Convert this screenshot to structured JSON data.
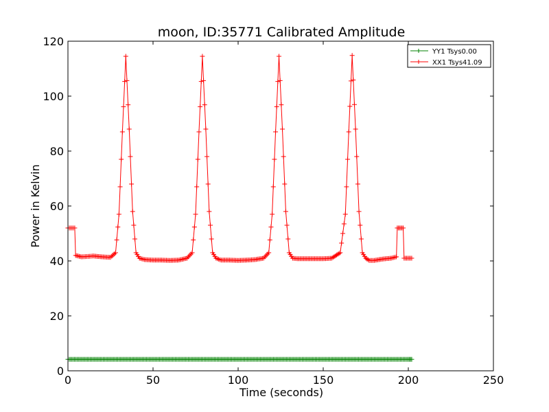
{
  "chart_data": {
    "type": "line",
    "title": "moon, ID:35771 Calibrated Amplitude",
    "xlabel": "Time (seconds)",
    "ylabel": "Power in Kelvin",
    "xlim": [
      0,
      250
    ],
    "ylim": [
      0,
      120
    ],
    "xticks": [
      0,
      50,
      100,
      150,
      200,
      250
    ],
    "yticks": [
      0,
      20,
      40,
      60,
      80,
      100,
      120
    ],
    "grid": false,
    "legend_position": "top-right",
    "marker": "+",
    "series": [
      {
        "name": "YY1 Tsys0.00",
        "color": "#008000",
        "x": [
          0,
          10,
          20,
          30,
          40,
          50,
          60,
          70,
          80,
          90,
          100,
          110,
          120,
          130,
          140,
          150,
          160,
          170,
          180,
          190,
          200,
          202
        ],
        "y": [
          4.2,
          4.2,
          4.2,
          4.2,
          4.2,
          4.2,
          4.2,
          4.2,
          4.2,
          4.2,
          4.2,
          4.2,
          4.2,
          4.2,
          4.2,
          4.2,
          4.2,
          4.2,
          4.2,
          4.2,
          4.2,
          4.2
        ]
      },
      {
        "name": "XX1 Tsys41.09",
        "color": "#ff0000",
        "x": [
          0,
          4,
          4.5,
          8,
          15,
          20,
          25,
          28,
          30,
          32,
          34,
          36,
          38,
          40,
          42,
          45,
          50,
          55,
          60,
          65,
          70,
          73,
          75,
          77,
          79,
          81,
          83,
          85,
          87,
          90,
          95,
          100,
          105,
          110,
          115,
          118,
          120,
          122,
          124,
          126,
          128,
          130,
          132,
          135,
          140,
          145,
          150,
          155,
          160,
          163,
          165,
          167,
          169,
          171,
          173,
          175,
          177,
          180,
          185,
          190,
          193,
          193.5,
          197,
          197.5,
          202
        ],
        "y": [
          52,
          52,
          42,
          41.5,
          41.8,
          41.5,
          41.3,
          43,
          57,
          87,
          114.5,
          88,
          58,
          43,
          41,
          40.5,
          40.3,
          40.3,
          40.2,
          40.3,
          41,
          43,
          57,
          87,
          114.5,
          88,
          58,
          43,
          41,
          40.3,
          40.3,
          40.2,
          40.3,
          40.5,
          41,
          43,
          57,
          87,
          114.5,
          88,
          58,
          43,
          41,
          40.8,
          40.8,
          40.8,
          40.8,
          41,
          43,
          57,
          87,
          114.8,
          88,
          58,
          43,
          41,
          40.2,
          40.2,
          40.7,
          41,
          41.5,
          52,
          52,
          41,
          41
        ]
      }
    ]
  }
}
